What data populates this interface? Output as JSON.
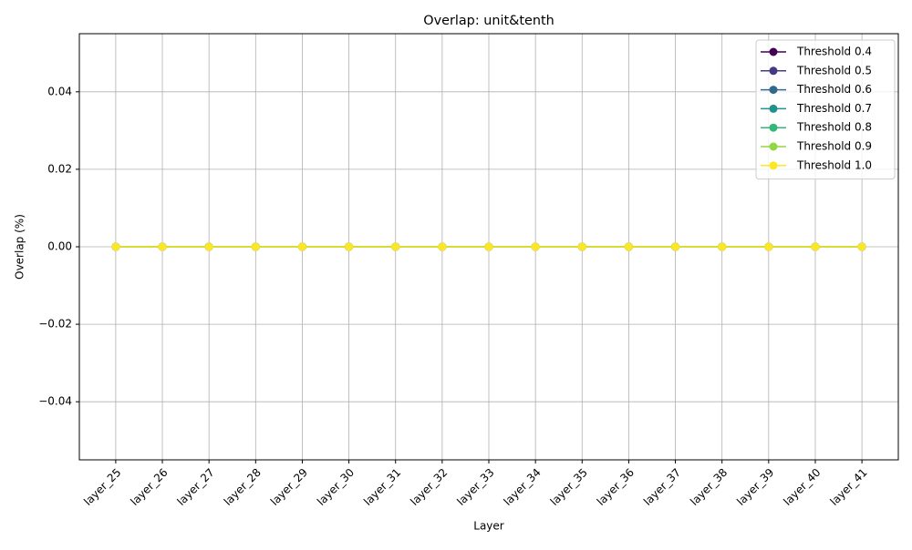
{
  "chart_data": {
    "type": "line",
    "title": "Overlap: unit&tenth",
    "x_label": "Layer",
    "y_label": "Overlap (%)",
    "categories": [
      "layer_25",
      "layer_26",
      "layer_27",
      "layer_28",
      "layer_29",
      "layer_30",
      "layer_31",
      "layer_32",
      "layer_33",
      "layer_34",
      "layer_35",
      "layer_36",
      "layer_37",
      "layer_38",
      "layer_39",
      "layer_40",
      "layer_41"
    ],
    "series": [
      {
        "name": "Threshold 0.4",
        "color": "#440154",
        "values": [
          0,
          0,
          0,
          0,
          0,
          0,
          0,
          0,
          0,
          0,
          0,
          0,
          0,
          0,
          0,
          0,
          0
        ]
      },
      {
        "name": "Threshold 0.5",
        "color": "#443983",
        "values": [
          0,
          0,
          0,
          0,
          0,
          0,
          0,
          0,
          0,
          0,
          0,
          0,
          0,
          0,
          0,
          0,
          0
        ]
      },
      {
        "name": "Threshold 0.6",
        "color": "#31688e",
        "values": [
          0,
          0,
          0,
          0,
          0,
          0,
          0,
          0,
          0,
          0,
          0,
          0,
          0,
          0,
          0,
          0,
          0
        ]
      },
      {
        "name": "Threshold 0.7",
        "color": "#21918c",
        "values": [
          0,
          0,
          0,
          0,
          0,
          0,
          0,
          0,
          0,
          0,
          0,
          0,
          0,
          0,
          0,
          0,
          0
        ]
      },
      {
        "name": "Threshold 0.8",
        "color": "#35b779",
        "values": [
          0,
          0,
          0,
          0,
          0,
          0,
          0,
          0,
          0,
          0,
          0,
          0,
          0,
          0,
          0,
          0,
          0
        ]
      },
      {
        "name": "Threshold 0.9",
        "color": "#90d743",
        "values": [
          0,
          0,
          0,
          0,
          0,
          0,
          0,
          0,
          0,
          0,
          0,
          0,
          0,
          0,
          0,
          0,
          0
        ]
      },
      {
        "name": "Threshold 1.0",
        "color": "#fde725",
        "values": [
          0,
          0,
          0,
          0,
          0,
          0,
          0,
          0,
          0,
          0,
          0,
          0,
          0,
          0,
          0,
          0,
          0
        ]
      }
    ],
    "ylim": [
      -0.055,
      0.055
    ],
    "yticks": [
      {
        "value": -0.04,
        "label": "−0.04"
      },
      {
        "value": -0.02,
        "label": "−0.02"
      },
      {
        "value": 0,
        "label": "0.00"
      },
      {
        "value": 0.02,
        "label": "0.02"
      },
      {
        "value": 0.04,
        "label": "0.04"
      }
    ],
    "grid": true,
    "legend": "upper-right"
  }
}
